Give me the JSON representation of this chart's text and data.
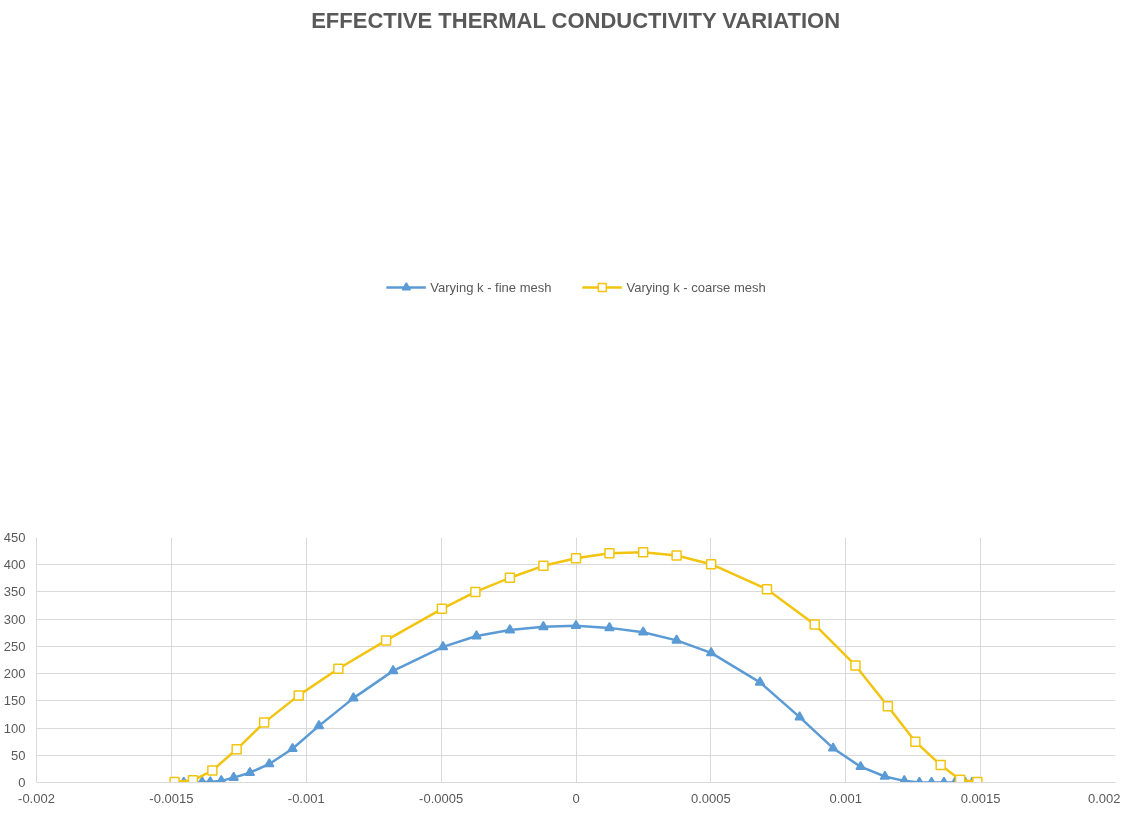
{
  "chart_data": {
    "type": "line",
    "title": "EFFECTIVE THERMAL CONDUCTIVITY VARIATION",
    "xlim": [
      -0.002,
      0.002
    ],
    "ylim": [
      0,
      450
    ],
    "xticks": [
      -0.002,
      -0.0015,
      -0.001,
      -0.0005,
      0,
      0.0005,
      0.001,
      0.0015,
      0.002
    ],
    "yticks": [
      0,
      50,
      100,
      150,
      200,
      250,
      300,
      350,
      400,
      450
    ],
    "grid": true,
    "legend": "top",
    "series": [
      {
        "name": "Varying k - fine mesh",
        "color": "#5b9bd5",
        "marker": "triangle",
        "x": [
          -0.001488,
          -0.001454,
          -0.001416,
          -0.001386,
          -0.001356,
          -0.001315,
          -0.001269,
          -0.001209,
          -0.001137,
          -0.001051,
          -0.000953,
          -0.000825,
          -0.000678,
          -0.000493,
          -0.000369,
          -0.000245,
          -0.000121,
          0,
          0.000124,
          0.000249,
          0.000373,
          0.000501,
          0.000682,
          0.000829,
          0.000953,
          0.001055,
          0.001145,
          0.001217,
          0.001273,
          0.001318,
          0.001364,
          0.001405,
          0.001443,
          0.001469,
          0.001492
        ],
        "values": [
          0,
          0,
          0,
          1,
          1,
          3,
          9,
          18,
          34,
          62,
          104,
          155,
          205,
          249,
          269,
          280,
          286,
          288,
          284,
          276,
          261,
          238,
          184,
          120,
          63,
          29,
          11,
          3,
          0,
          0,
          0,
          0,
          0,
          0,
          0
        ]
      },
      {
        "name": "Varying k - coarse mesh",
        "color": "#f2c40f",
        "marker": "square",
        "x": [
          -0.001488,
          -0.00142,
          -0.001348,
          -0.001258,
          -0.001156,
          -0.001028,
          -0.000881,
          -0.000704,
          -0.000497,
          -0.000373,
          -0.000245,
          -0.000121,
          0,
          0.000124,
          0.000249,
          0.000373,
          0.000501,
          0.000708,
          0.000885,
          0.001036,
          0.001156,
          0.001258,
          0.001352,
          0.001424,
          0.001488
        ],
        "values": [
          1,
          4,
          22,
          61,
          110,
          160,
          209,
          261,
          319,
          350,
          376,
          398,
          412,
          421,
          423,
          417,
          401,
          355,
          290,
          215,
          140,
          75,
          32,
          5,
          1
        ]
      }
    ]
  }
}
